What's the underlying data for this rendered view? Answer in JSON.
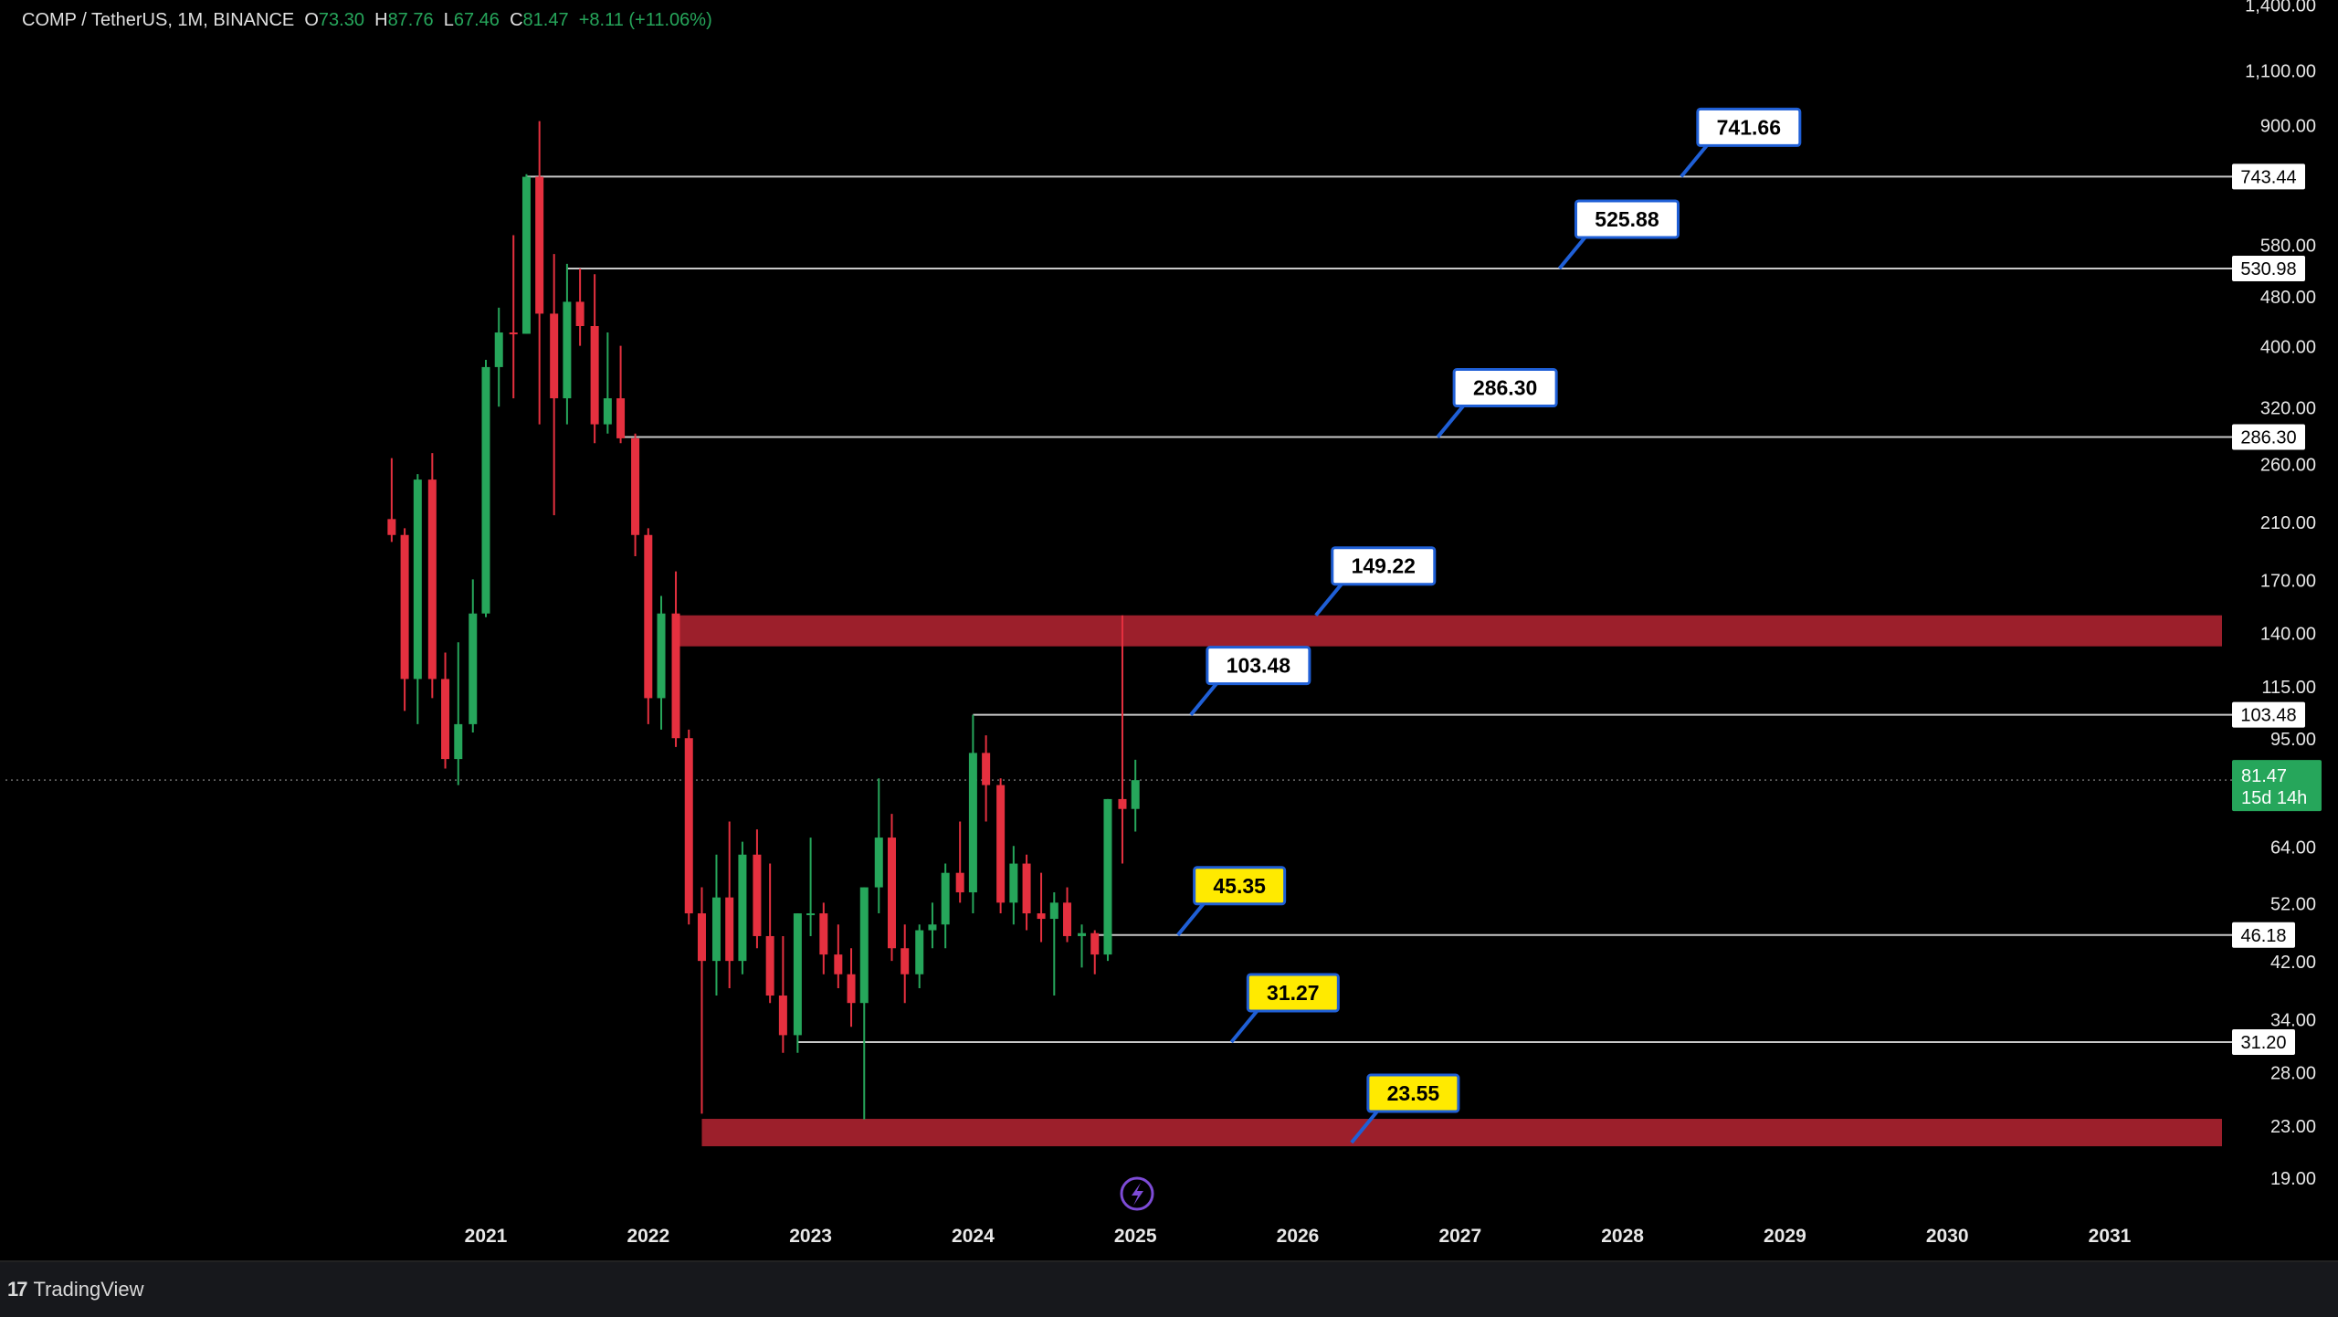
{
  "header": {
    "symbol": "COMP / TetherUS, 1M, BINANCE",
    "o_label": "O",
    "o_value": "73.30",
    "h_label": "H",
    "h_value": "87.76",
    "l_label": "L",
    "l_value": "67.46",
    "c_label": "C",
    "c_value": "81.47",
    "change": "+8.11 (+11.06%)"
  },
  "footer": {
    "brand": "TradingView",
    "logo_icon": "tradingview-logo-icon"
  },
  "colors": {
    "bull": "#26a65b",
    "bear": "#e5303f",
    "zone": "#9c1f2b",
    "line": "#c8c8c8",
    "callout_white": "#ffffff",
    "callout_yellow": "#ffea00",
    "callout_border": "#1f5fd6",
    "current_price_bg": "#26a65b"
  },
  "chart_data": {
    "type": "candlestick",
    "scale": "log",
    "title": "COMP / TetherUS, 1M, BINANCE",
    "x_ticks": [
      "2021",
      "2022",
      "2023",
      "2024",
      "2025",
      "2026",
      "2027",
      "2028",
      "2029",
      "2030",
      "2031"
    ],
    "y_ticks": [
      "1,400.00",
      "1,100.00",
      "900.00",
      "580.00",
      "480.00",
      "400.00",
      "320.00",
      "260.00",
      "210.00",
      "170.00",
      "140.00",
      "115.00",
      "95.00",
      "64.00",
      "52.00",
      "42.00",
      "34.00",
      "28.00",
      "23.00",
      "19.00"
    ],
    "y_tick_values": [
      1400,
      1100,
      900,
      580,
      480,
      400,
      320,
      260,
      210,
      170,
      140,
      115,
      95,
      64,
      52,
      42,
      34,
      28,
      23,
      19
    ],
    "ylim": [
      16.3,
      1420
    ],
    "candles": [
      {
        "t": 2020.42,
        "o": 212,
        "h": 265,
        "l": 195,
        "c": 200
      },
      {
        "t": 2020.5,
        "o": 200,
        "h": 205,
        "l": 105,
        "c": 118
      },
      {
        "t": 2020.58,
        "o": 118,
        "h": 250,
        "l": 100,
        "c": 245
      },
      {
        "t": 2020.67,
        "o": 245,
        "h": 270,
        "l": 110,
        "c": 118
      },
      {
        "t": 2020.75,
        "o": 118,
        "h": 130,
        "l": 85,
        "c": 88
      },
      {
        "t": 2020.83,
        "o": 88,
        "h": 135,
        "l": 80,
        "c": 100
      },
      {
        "t": 2020.92,
        "o": 100,
        "h": 170,
        "l": 97,
        "c": 150
      },
      {
        "t": 2021.0,
        "o": 150,
        "h": 380,
        "l": 148,
        "c": 370
      },
      {
        "t": 2021.08,
        "o": 370,
        "h": 460,
        "l": 320,
        "c": 420
      },
      {
        "t": 2021.17,
        "o": 420,
        "h": 600,
        "l": 330,
        "c": 418
      },
      {
        "t": 2021.25,
        "o": 418,
        "h": 750,
        "l": 418,
        "c": 743
      },
      {
        "t": 2021.33,
        "o": 743,
        "h": 911,
        "l": 300,
        "c": 450
      },
      {
        "t": 2021.42,
        "o": 450,
        "h": 560,
        "l": 215,
        "c": 330
      },
      {
        "t": 2021.5,
        "o": 330,
        "h": 540,
        "l": 300,
        "c": 470
      },
      {
        "t": 2021.58,
        "o": 470,
        "h": 531,
        "l": 400,
        "c": 430
      },
      {
        "t": 2021.67,
        "o": 430,
        "h": 520,
        "l": 280,
        "c": 300
      },
      {
        "t": 2021.75,
        "o": 300,
        "h": 420,
        "l": 290,
        "c": 330
      },
      {
        "t": 2021.83,
        "o": 330,
        "h": 400,
        "l": 280,
        "c": 285
      },
      {
        "t": 2021.92,
        "o": 285,
        "h": 290,
        "l": 185,
        "c": 200
      },
      {
        "t": 2022.0,
        "o": 200,
        "h": 205,
        "l": 100,
        "c": 110
      },
      {
        "t": 2022.08,
        "o": 110,
        "h": 160,
        "l": 98,
        "c": 150
      },
      {
        "t": 2022.17,
        "o": 150,
        "h": 175,
        "l": 92,
        "c": 95
      },
      {
        "t": 2022.25,
        "o": 95,
        "h": 98,
        "l": 48,
        "c": 50
      },
      {
        "t": 2022.33,
        "o": 50,
        "h": 55,
        "l": 24,
        "c": 42
      },
      {
        "t": 2022.42,
        "o": 42,
        "h": 62,
        "l": 37,
        "c": 53
      },
      {
        "t": 2022.5,
        "o": 53,
        "h": 70,
        "l": 38,
        "c": 42
      },
      {
        "t": 2022.58,
        "o": 42,
        "h": 65,
        "l": 40,
        "c": 62
      },
      {
        "t": 2022.67,
        "o": 62,
        "h": 68,
        "l": 44,
        "c": 46
      },
      {
        "t": 2022.75,
        "o": 46,
        "h": 60,
        "l": 36,
        "c": 37
      },
      {
        "t": 2022.83,
        "o": 37,
        "h": 46,
        "l": 30,
        "c": 32
      },
      {
        "t": 2022.92,
        "o": 32,
        "h": 50,
        "l": 30,
        "c": 50
      },
      {
        "t": 2023.0,
        "o": 50,
        "h": 66,
        "l": 46,
        "c": 50
      },
      {
        "t": 2023.08,
        "o": 50,
        "h": 52,
        "l": 40,
        "c": 43
      },
      {
        "t": 2023.17,
        "o": 43,
        "h": 48,
        "l": 38,
        "c": 40
      },
      {
        "t": 2023.25,
        "o": 40,
        "h": 44,
        "l": 33,
        "c": 36
      },
      {
        "t": 2023.33,
        "o": 36,
        "h": 55,
        "l": 23.5,
        "c": 55
      },
      {
        "t": 2023.42,
        "o": 55,
        "h": 82,
        "l": 50,
        "c": 66
      },
      {
        "t": 2023.5,
        "o": 66,
        "h": 72,
        "l": 42,
        "c": 44
      },
      {
        "t": 2023.58,
        "o": 44,
        "h": 48,
        "l": 36,
        "c": 40
      },
      {
        "t": 2023.67,
        "o": 40,
        "h": 48,
        "l": 38,
        "c": 47
      },
      {
        "t": 2023.75,
        "o": 47,
        "h": 52,
        "l": 44,
        "c": 48
      },
      {
        "t": 2023.83,
        "o": 48,
        "h": 60,
        "l": 44,
        "c": 58
      },
      {
        "t": 2023.92,
        "o": 58,
        "h": 70,
        "l": 52,
        "c": 54
      },
      {
        "t": 2024.0,
        "o": 54,
        "h": 103.5,
        "l": 50,
        "c": 90
      },
      {
        "t": 2024.08,
        "o": 90,
        "h": 96,
        "l": 70,
        "c": 80
      },
      {
        "t": 2024.17,
        "o": 80,
        "h": 82,
        "l": 50,
        "c": 52
      },
      {
        "t": 2024.25,
        "o": 52,
        "h": 64,
        "l": 48,
        "c": 60
      },
      {
        "t": 2024.33,
        "o": 60,
        "h": 62,
        "l": 47,
        "c": 50
      },
      {
        "t": 2024.42,
        "o": 50,
        "h": 58,
        "l": 45,
        "c": 49
      },
      {
        "t": 2024.5,
        "o": 49,
        "h": 54,
        "l": 37,
        "c": 52
      },
      {
        "t": 2024.58,
        "o": 52,
        "h": 55,
        "l": 45,
        "c": 46
      },
      {
        "t": 2024.67,
        "o": 46,
        "h": 48,
        "l": 41,
        "c": 46.5
      },
      {
        "t": 2024.75,
        "o": 46.5,
        "h": 47,
        "l": 40,
        "c": 43
      },
      {
        "t": 2024.83,
        "o": 43,
        "h": 76,
        "l": 42,
        "c": 76
      },
      {
        "t": 2024.92,
        "o": 76,
        "h": 149,
        "l": 60,
        "c": 73.3
      },
      {
        "t": 2025.0,
        "o": 73.3,
        "h": 87.76,
        "l": 67.46,
        "c": 81.47
      }
    ],
    "levels": [
      {
        "value": 743.44,
        "label": "743.44",
        "x_start": 2021.25,
        "callout": "741.66",
        "callout_style": "white",
        "callout_t": 2028.35
      },
      {
        "value": 530.98,
        "label": "530.98",
        "x_start": 2021.5,
        "callout": "525.88",
        "callout_style": "white",
        "callout_t": 2027.6
      },
      {
        "value": 286.3,
        "label": "286.30",
        "x_start": 2021.83,
        "callout": "286.30",
        "callout_style": "white",
        "callout_t": 2026.85
      },
      {
        "value": 103.48,
        "label": "103.48",
        "x_start": 2024.0,
        "callout": "103.48",
        "callout_style": "white",
        "callout_t": 2025.33
      },
      {
        "value": 46.18,
        "label": "46.18",
        "x_start": 2024.75,
        "callout": "45.35",
        "callout_style": "yellow",
        "callout_t": 2025.25
      },
      {
        "value": 31.2,
        "label": "31.20",
        "x_start": 2022.92,
        "callout": "31.27",
        "callout_style": "yellow",
        "callout_t": 2025.58
      }
    ],
    "zones": [
      {
        "low": 133,
        "high": 149,
        "x_start": 2022.17,
        "callout": "149.22",
        "callout_style": "white",
        "callout_t": 2026.1
      },
      {
        "low": 21.3,
        "high": 23.55,
        "x_start": 2022.33,
        "callout": "23.55",
        "callout_style": "yellow",
        "callout_t": 2026.32
      }
    ],
    "current_price": {
      "value": 81.47,
      "label": "81.47",
      "countdown": "15d 14h"
    },
    "grid": false
  }
}
